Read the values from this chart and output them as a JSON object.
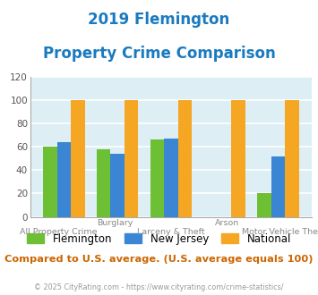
{
  "title_line1": "2019 Flemington",
  "title_line2": "Property Crime Comparison",
  "title_color": "#1a7abf",
  "categories": [
    "All Property Crime",
    "Burglary",
    "Larceny & Theft",
    "Arson",
    "Motor Vehicle Theft"
  ],
  "top_labels": [
    "",
    "Burglary",
    "",
    "Arson",
    ""
  ],
  "bottom_labels": [
    "All Property Crime",
    "",
    "Larceny & Theft",
    "",
    "Motor Vehicle Theft"
  ],
  "flemington": [
    60,
    58,
    66,
    0,
    20
  ],
  "new_jersey": [
    64,
    54,
    67,
    0,
    52
  ],
  "national": [
    100,
    100,
    100,
    100,
    100
  ],
  "flemington_color": "#6dbf34",
  "nj_color": "#3a86d4",
  "national_color": "#f5a623",
  "ylim": [
    0,
    120
  ],
  "yticks": [
    0,
    20,
    40,
    60,
    80,
    100,
    120
  ],
  "background_color": "#ddeef5",
  "grid_color": "#ffffff",
  "footnote": "Compared to U.S. average. (U.S. average equals 100)",
  "footnote_color": "#cc6600",
  "copyright": "© 2025 CityRating.com - https://www.cityrating.com/crime-statistics/",
  "copyright_color": "#999999",
  "legend_labels": [
    "Flemington",
    "New Jersey",
    "National"
  ]
}
